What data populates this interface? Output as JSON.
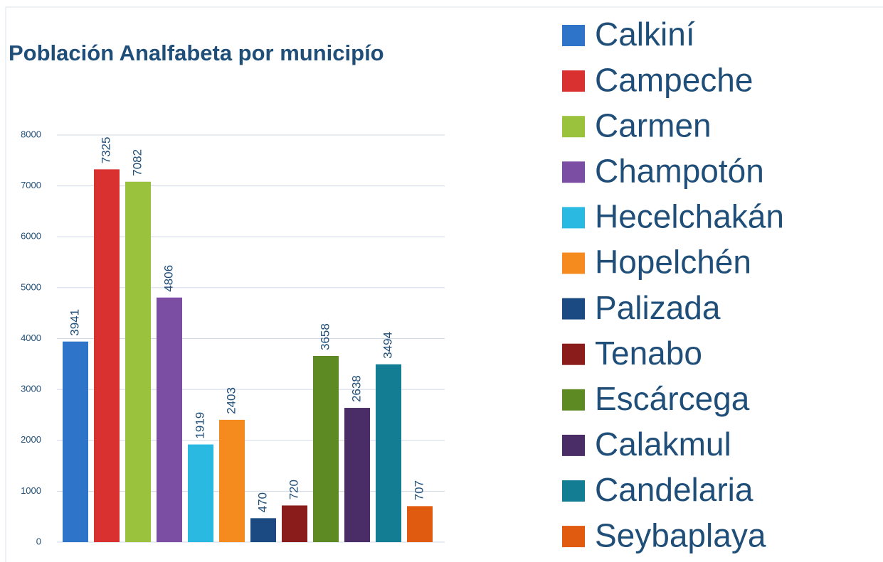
{
  "chart_data": {
    "type": "bar",
    "title": "Población Analfabeta por municipío",
    "series": [
      {
        "name": "Calkiní",
        "color": "#2e74c9",
        "values": [
          3941
        ]
      },
      {
        "name": "Campeche",
        "color": "#d93030",
        "values": [
          7325
        ]
      },
      {
        "name": "Carmen",
        "color": "#9ac23c",
        "values": [
          7082
        ]
      },
      {
        "name": "Champotón",
        "color": "#7b4da3",
        "values": [
          4806
        ]
      },
      {
        "name": "Hecelchakán",
        "color": "#2ab9e0",
        "values": [
          1919
        ]
      },
      {
        "name": "Hopelchén",
        "color": "#f58a1f",
        "values": [
          2403
        ]
      },
      {
        "name": "Palizada",
        "color": "#1b4a82",
        "values": [
          470
        ]
      },
      {
        "name": "Tenabo",
        "color": "#8b1c1c",
        "values": [
          720
        ]
      },
      {
        "name": "Escárcega",
        "color": "#5e8a23",
        "values": [
          3658
        ]
      },
      {
        "name": "Calakmul",
        "color": "#4a2d66",
        "values": [
          2638
        ]
      },
      {
        "name": "Candelaria",
        "color": "#137d94",
        "values": [
          3494
        ]
      },
      {
        "name": "Seybaplaya",
        "color": "#e05a10",
        "values": [
          707
        ]
      }
    ],
    "ylim": [
      0,
      8000
    ],
    "yticks": [
      0,
      1000,
      2000,
      3000,
      4000,
      5000,
      6000,
      7000,
      8000
    ],
    "grid": true,
    "legend": "right"
  }
}
